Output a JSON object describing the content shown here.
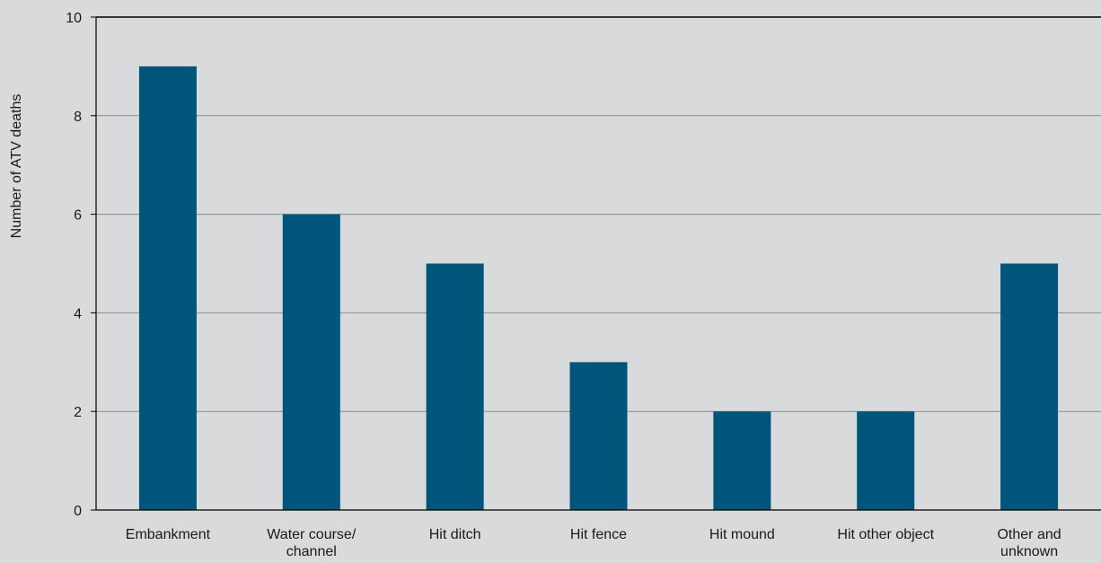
{
  "chart_data": {
    "type": "bar",
    "title": "",
    "xlabel": "",
    "ylabel": "Number of ATV deaths",
    "ylim": [
      0,
      10
    ],
    "yticks": [
      0,
      2,
      4,
      6,
      8,
      10
    ],
    "grid": true,
    "categories": [
      [
        "Embankment"
      ],
      [
        "Water course/",
        "channel"
      ],
      [
        "Hit ditch"
      ],
      [
        "Hit fence"
      ],
      [
        "Hit mound"
      ],
      [
        "Hit other object"
      ],
      [
        "Other and",
        "unknown"
      ]
    ],
    "values": [
      9,
      6,
      5,
      3,
      2,
      2,
      5
    ],
    "colors": {
      "bar": "#00567a",
      "background": "#d9dadb",
      "grid": "#8a8a8a",
      "axis": "#000000"
    }
  }
}
